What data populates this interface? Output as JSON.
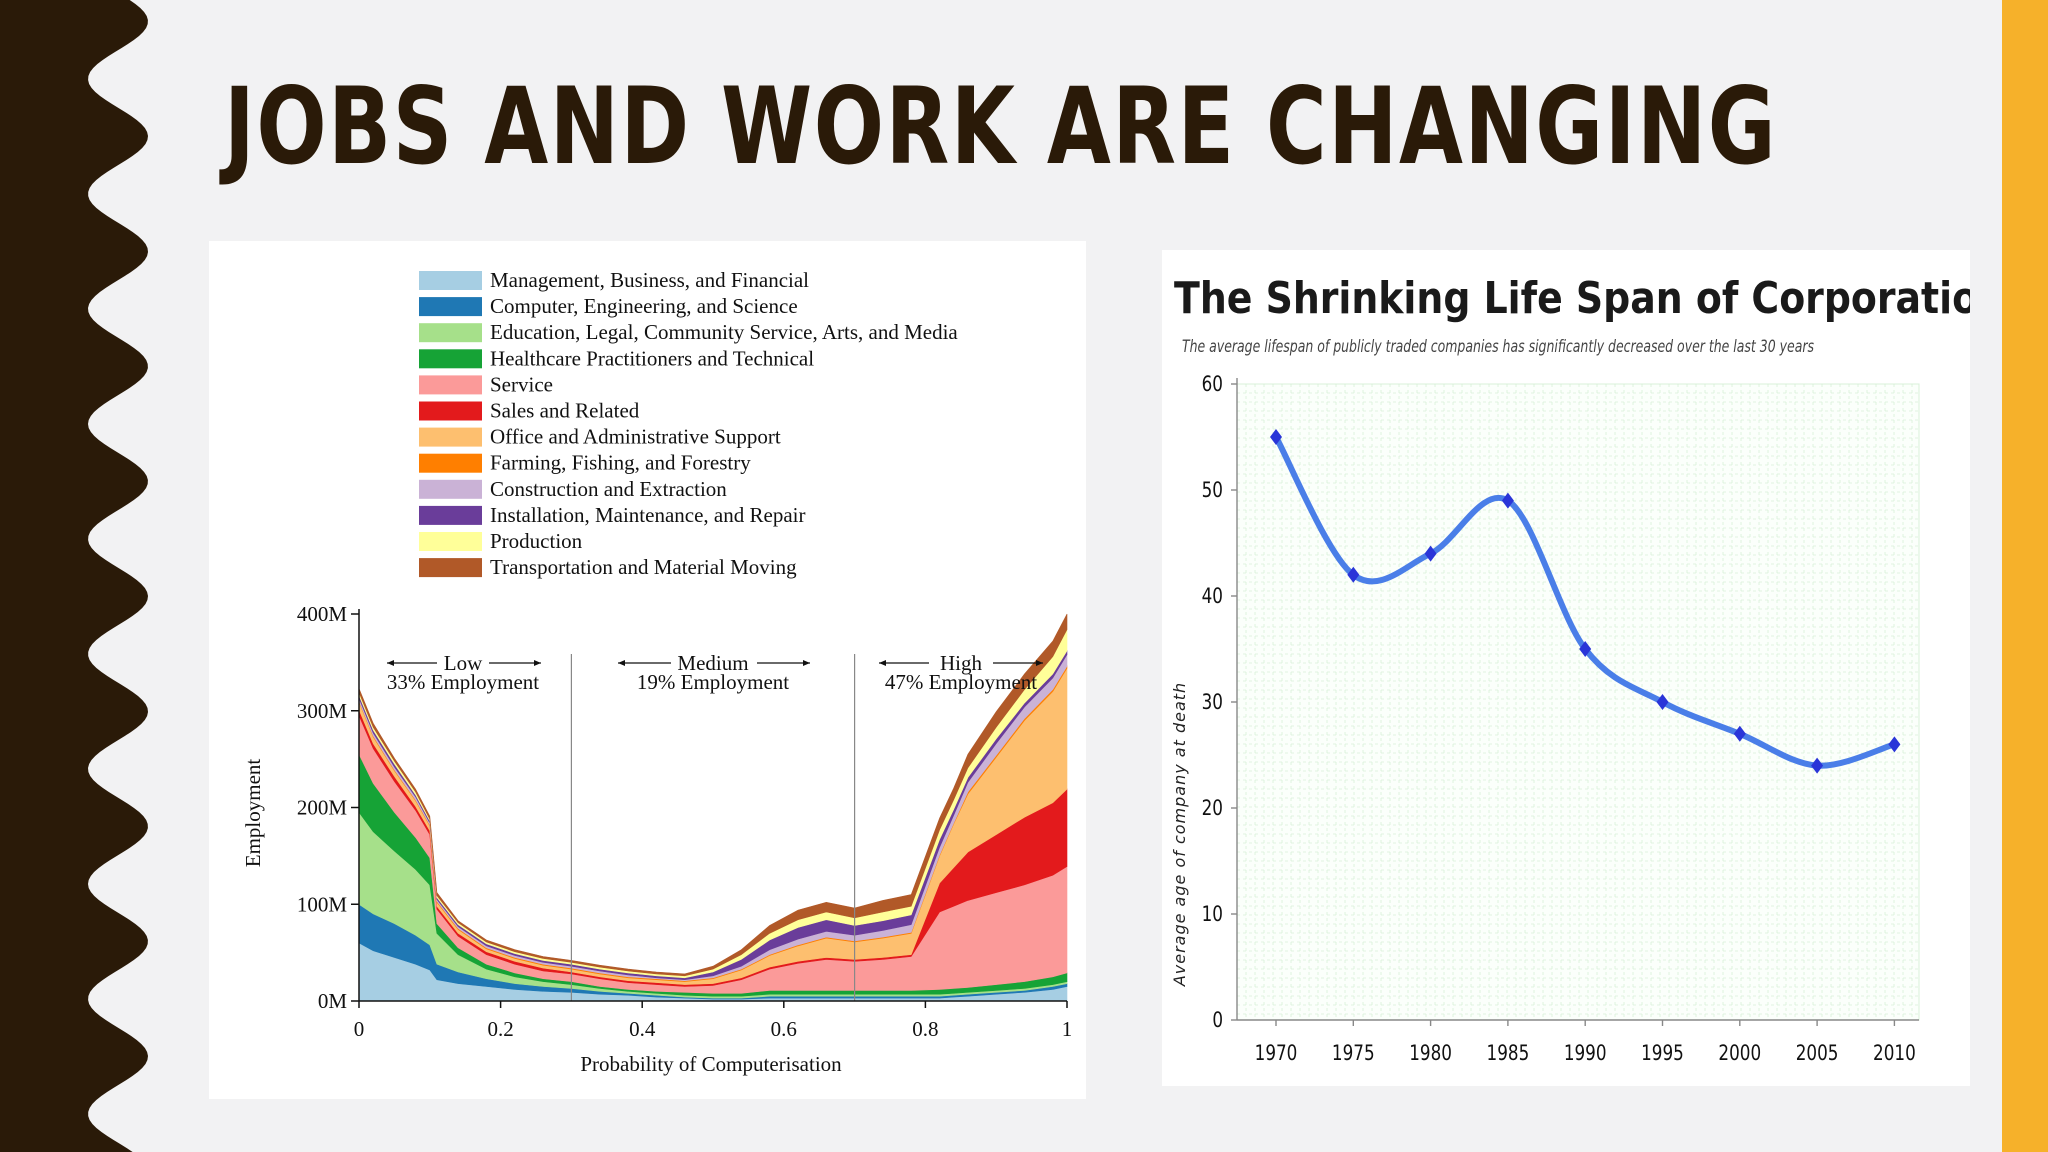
{
  "slide": {
    "title": "JOBS AND WORK ARE CHANGING",
    "colors": {
      "wave": "#2a1a08",
      "stripe": "#f6b12a",
      "background": "#f2f2f3"
    }
  },
  "chart_data": [
    {
      "type": "area",
      "stacked": true,
      "title": "",
      "xlabel": "Probability of Computerisation",
      "ylabel": "Employment",
      "xlim": [
        0,
        1
      ],
      "ylim": [
        0,
        400
      ],
      "x_ticks": [
        "0",
        "0.2",
        "0.4",
        "0.6",
        "0.8",
        "1"
      ],
      "y_ticks": [
        "0M",
        "100M",
        "200M",
        "300M",
        "400M"
      ],
      "x": [
        0,
        0.02,
        0.05,
        0.08,
        0.1,
        0.11,
        0.14,
        0.18,
        0.22,
        0.26,
        0.3,
        0.34,
        0.38,
        0.42,
        0.46,
        0.5,
        0.54,
        0.58,
        0.62,
        0.66,
        0.7,
        0.74,
        0.78,
        0.82,
        0.84,
        0.86,
        0.9,
        0.94,
        0.98,
        1.0
      ],
      "legend_position": "top",
      "series": [
        {
          "name": "Management, Business, and Financial",
          "color": "#a6cee3",
          "values": [
            60,
            52,
            45,
            38,
            32,
            22,
            18,
            15,
            12,
            10,
            9,
            7,
            6,
            4,
            3,
            2,
            2,
            3,
            3,
            3,
            3,
            3,
            3,
            3,
            4,
            5,
            7,
            9,
            12,
            15
          ]
        },
        {
          "name": "Computer, Engineering, and Science",
          "color": "#1f78b4",
          "values": [
            40,
            38,
            35,
            30,
            26,
            16,
            12,
            8,
            6,
            5,
            4,
            3,
            2,
            2,
            1,
            1,
            1,
            2,
            2,
            2,
            2,
            2,
            2,
            2,
            2,
            2,
            2,
            2,
            3,
            3
          ]
        },
        {
          "name": "Education, Legal, Community Service, Arts, and Media",
          "color": "#a6e08a",
          "values": [
            95,
            85,
            75,
            68,
            62,
            32,
            18,
            10,
            7,
            5,
            4,
            3,
            2,
            2,
            2,
            2,
            2,
            2,
            2,
            2,
            2,
            2,
            2,
            2,
            2,
            2,
            2,
            2,
            2,
            2
          ]
        },
        {
          "name": "Healthcare Practitioners and Technical",
          "color": "#16a336",
          "values": [
            60,
            50,
            40,
            33,
            28,
            10,
            7,
            5,
            4,
            3,
            3,
            2,
            2,
            2,
            3,
            3,
            3,
            4,
            4,
            4,
            4,
            4,
            4,
            5,
            5,
            5,
            6,
            7,
            8,
            9
          ]
        },
        {
          "name": "Service",
          "color": "#fb9a99",
          "values": [
            40,
            36,
            32,
            28,
            24,
            15,
            12,
            10,
            9,
            8,
            8,
            8,
            7,
            7,
            6,
            8,
            14,
            22,
            28,
            32,
            30,
            32,
            35,
            80,
            85,
            90,
            95,
            100,
            105,
            110
          ]
        },
        {
          "name": "Sales and Related",
          "color": "#e31a1c",
          "values": [
            6,
            5,
            5,
            4,
            4,
            3,
            3,
            3,
            3,
            3,
            2,
            2,
            2,
            2,
            2,
            2,
            2,
            2,
            2,
            2,
            2,
            2,
            2,
            30,
            40,
            50,
            60,
            70,
            75,
            80
          ]
        },
        {
          "name": "Office and Administrative Support",
          "color": "#fdbf6f",
          "values": [
            8,
            7,
            6,
            6,
            5,
            4,
            4,
            3,
            3,
            3,
            3,
            3,
            3,
            3,
            3,
            5,
            8,
            12,
            16,
            20,
            18,
            20,
            22,
            28,
            45,
            60,
            80,
            100,
            115,
            125
          ]
        },
        {
          "name": "Farming, Fishing, and Forestry",
          "color": "#ff7f00",
          "values": [
            1,
            1,
            1,
            1,
            1,
            1,
            1,
            1,
            1,
            1,
            1,
            1,
            1,
            1,
            1,
            1,
            1,
            1,
            1,
            1,
            1,
            1,
            1,
            1,
            1,
            2,
            2,
            2,
            2,
            2
          ]
        },
        {
          "name": "Construction and Extraction",
          "color": "#cab2d6",
          "values": [
            3,
            3,
            3,
            3,
            2,
            2,
            2,
            2,
            2,
            2,
            2,
            2,
            2,
            1,
            1,
            2,
            3,
            5,
            6,
            6,
            6,
            7,
            8,
            8,
            8,
            10,
            12,
            12,
            12,
            12
          ]
        },
        {
          "name": "Installation, Maintenance, and Repair",
          "color": "#6a3d9a",
          "values": [
            3,
            3,
            3,
            2,
            2,
            2,
            2,
            2,
            2,
            2,
            2,
            2,
            2,
            2,
            2,
            4,
            7,
            10,
            12,
            12,
            10,
            10,
            10,
            8,
            6,
            5,
            5,
            4,
            4,
            4
          ]
        },
        {
          "name": "Production",
          "color": "#ffff99",
          "values": [
            3,
            3,
            3,
            3,
            2,
            2,
            2,
            2,
            2,
            2,
            2,
            2,
            2,
            2,
            2,
            3,
            5,
            7,
            8,
            8,
            8,
            9,
            9,
            10,
            10,
            10,
            12,
            14,
            18,
            22
          ]
        },
        {
          "name": "Transportation and Material Moving",
          "color": "#b15928",
          "values": [
            4,
            4,
            3,
            3,
            3,
            3,
            2,
            2,
            2,
            2,
            2,
            2,
            2,
            2,
            2,
            3,
            5,
            8,
            10,
            10,
            10,
            12,
            12,
            12,
            12,
            14,
            16,
            16,
            16,
            16
          ]
        }
      ],
      "annotations": [
        {
          "label": "Low",
          "sub": "33% Employment"
        },
        {
          "label": "Medium",
          "sub": "19% Employment"
        },
        {
          "label": "High",
          "sub": "47% Employment"
        }
      ],
      "dividers_x": [
        0.3,
        0.7
      ]
    },
    {
      "type": "line",
      "title": "The Shrinking Life Span of Corporations",
      "subtitle": "The average lifespan of publicly traded companies has significantly decreased over the last 30 years",
      "xlabel": "",
      "ylabel": "Average age of company at death",
      "categories": [
        "1970",
        "1975",
        "1980",
        "1985",
        "1990",
        "1995",
        "2000",
        "2005",
        "2010"
      ],
      "series": [
        {
          "values": [
            55,
            42,
            44,
            49,
            35,
            30,
            27,
            24,
            26
          ],
          "color": "#4a7ee8",
          "marker_color": "#2a35d8"
        }
      ],
      "ylim": [
        0,
        60
      ],
      "y_ticks": [
        "0",
        "10",
        "20",
        "30",
        "40",
        "50",
        "60"
      ],
      "grid": true,
      "grid_color": "#d8f0d8"
    }
  ]
}
